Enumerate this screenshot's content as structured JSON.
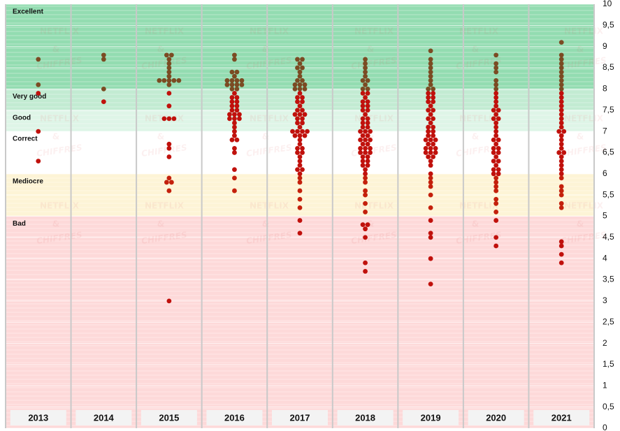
{
  "chart_data": {
    "type": "beeswarm",
    "categories": [
      "2013",
      "2014",
      "2015",
      "2016",
      "2017",
      "2018",
      "2019",
      "2020",
      "2021"
    ],
    "values": [
      [
        8.7,
        8.1,
        7.9,
        7.0,
        6.3
      ],
      [
        8.8,
        8.7,
        8.0,
        7.7
      ],
      [
        8.8,
        8.8,
        8.7,
        8.6,
        8.5,
        8.4,
        8.3,
        8.2,
        8.2,
        8.2,
        8.2,
        8.2,
        8.1,
        7.9,
        7.6,
        7.3,
        7.3,
        7.3,
        6.7,
        6.6,
        6.4,
        5.9,
        5.8,
        5.8,
        5.6,
        3.0
      ],
      [
        8.8,
        8.7,
        8.4,
        8.4,
        8.3,
        8.2,
        8.2,
        8.2,
        8.2,
        8.1,
        8.1,
        8.1,
        8.1,
        8.0,
        8.0,
        7.9,
        7.8,
        7.8,
        7.7,
        7.7,
        7.6,
        7.6,
        7.5,
        7.5,
        7.4,
        7.4,
        7.4,
        7.3,
        7.3,
        7.3,
        7.2,
        7.1,
        7.0,
        6.9,
        6.8,
        6.8,
        6.6,
        6.5,
        6.1,
        5.9,
        5.6
      ],
      [
        8.7,
        8.7,
        8.6,
        8.5,
        8.5,
        8.4,
        8.3,
        8.2,
        8.2,
        8.1,
        8.1,
        8.1,
        8.0,
        8.0,
        8.0,
        7.9,
        7.8,
        7.8,
        7.7,
        7.7,
        7.6,
        7.5,
        7.5,
        7.4,
        7.4,
        7.4,
        7.3,
        7.3,
        7.2,
        7.2,
        7.1,
        7.0,
        7.0,
        7.0,
        7.0,
        6.9,
        6.9,
        6.9,
        6.8,
        6.7,
        6.6,
        6.6,
        6.5,
        6.5,
        6.4,
        6.3,
        6.2,
        6.1,
        6.1,
        6.0,
        5.9,
        5.8,
        5.6,
        5.4,
        5.2,
        4.9,
        4.6
      ],
      [
        8.7,
        8.6,
        8.5,
        8.4,
        8.3,
        8.2,
        8.2,
        8.1,
        8.0,
        8.0,
        7.9,
        7.9,
        7.8,
        7.7,
        7.7,
        7.6,
        7.6,
        7.5,
        7.5,
        7.4,
        7.3,
        7.3,
        7.2,
        7.2,
        7.1,
        7.1,
        7.0,
        7.0,
        7.0,
        6.9,
        6.9,
        6.8,
        6.8,
        6.8,
        6.7,
        6.7,
        6.6,
        6.6,
        6.6,
        6.5,
        6.5,
        6.5,
        6.4,
        6.4,
        6.3,
        6.3,
        6.2,
        6.2,
        6.1,
        6.0,
        5.9,
        5.8,
        5.6,
        5.5,
        5.3,
        5.1,
        4.8,
        4.8,
        4.7,
        4.5,
        3.9,
        3.7
      ],
      [
        8.9,
        8.7,
        8.6,
        8.5,
        8.4,
        8.3,
        8.2,
        8.1,
        8.0,
        8.0,
        7.9,
        7.9,
        7.8,
        7.8,
        7.7,
        7.7,
        7.6,
        7.5,
        7.5,
        7.4,
        7.3,
        7.3,
        7.2,
        7.1,
        7.1,
        7.0,
        7.0,
        6.9,
        6.9,
        6.8,
        6.8,
        6.8,
        6.7,
        6.7,
        6.6,
        6.6,
        6.6,
        6.5,
        6.5,
        6.5,
        6.4,
        6.4,
        6.3,
        6.2,
        6.0,
        5.9,
        5.8,
        5.7,
        5.5,
        5.2,
        4.9,
        4.6,
        4.5,
        4.0,
        3.4
      ],
      [
        8.8,
        8.6,
        8.5,
        8.4,
        8.2,
        8.1,
        8.0,
        7.9,
        7.8,
        7.7,
        7.6,
        7.5,
        7.5,
        7.4,
        7.3,
        7.3,
        7.2,
        7.1,
        7.0,
        6.9,
        6.8,
        6.8,
        6.7,
        6.6,
        6.6,
        6.5,
        6.5,
        6.4,
        6.3,
        6.3,
        6.2,
        6.1,
        6.1,
        6.0,
        6.0,
        5.9,
        5.8,
        5.7,
        5.6,
        5.4,
        5.3,
        5.1,
        4.9,
        4.5,
        4.3
      ],
      [
        9.1,
        8.8,
        8.7,
        8.6,
        8.5,
        8.4,
        8.3,
        8.2,
        8.1,
        8.0,
        7.9,
        7.8,
        7.7,
        7.6,
        7.5,
        7.4,
        7.3,
        7.2,
        7.1,
        7.0,
        7.0,
        6.9,
        6.8,
        6.7,
        6.6,
        6.5,
        6.5,
        6.4,
        6.3,
        6.2,
        6.1,
        6.0,
        5.9,
        5.7,
        5.6,
        5.5,
        5.3,
        5.2,
        4.4,
        4.3,
        4.1,
        3.9
      ]
    ],
    "bands": [
      {
        "label": "Excellent",
        "from": 8,
        "to": 10,
        "color": "#93dcb1",
        "dot_color": "#7b4b23"
      },
      {
        "label": "Very good",
        "from": 7.5,
        "to": 8,
        "color": "#c2ebd2",
        "dot_color": "#c0110c"
      },
      {
        "label": "Good",
        "from": 7,
        "to": 7.5,
        "color": "#def5e7",
        "dot_color": "#c0110c"
      },
      {
        "label": "Correct",
        "from": 6,
        "to": 7,
        "color": "#ffffff",
        "dot_color": "#c0110c"
      },
      {
        "label": "Mediocre",
        "from": 5,
        "to": 6,
        "color": "#fdf4d6",
        "dot_color": "#c4200c"
      },
      {
        "label": "Bad",
        "from": 0,
        "to": 5,
        "color": "#fdd9d9",
        "dot_color": "#c0110c"
      }
    ],
    "watermark": [
      "NETFLIX",
      "&",
      "CHIFFRES"
    ],
    "ylim": [
      0,
      10
    ],
    "yticks": [
      0,
      {
        "value": 0.5,
        "label": "0,5"
      },
      1,
      {
        "value": 1.5,
        "label": "1,5"
      },
      2,
      {
        "value": 2.5,
        "label": "2,5"
      },
      3,
      {
        "value": 3.5,
        "label": "3,5"
      },
      4,
      {
        "value": 4.5,
        "label": "4,5"
      },
      5,
      {
        "value": 5.5,
        "label": "5,5"
      },
      6,
      {
        "value": 6.5,
        "label": "6,5"
      },
      7,
      {
        "value": 7.5,
        "label": "7,5"
      },
      8,
      {
        "value": 8.5,
        "label": "8,5"
      },
      9,
      {
        "value": 9.5,
        "label": "9,5"
      },
      10
    ],
    "grid": true
  }
}
